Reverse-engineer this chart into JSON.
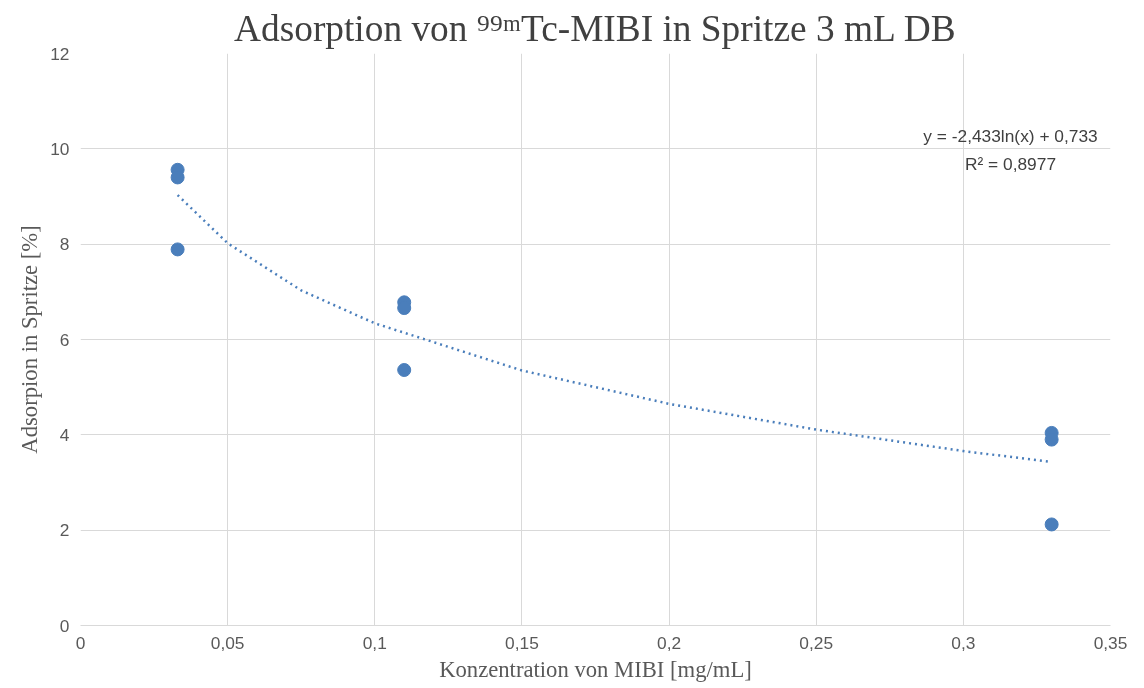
{
  "chart_data": {
    "type": "scatter",
    "title": "Adsorption von ⁹⁹ᵐTc-MIBI in Spritze 3 mL DB",
    "xlabel": "Konzentration von MIBI [mg/mL]",
    "ylabel": "Adsorpion in Spritze [%]",
    "series": [
      {
        "color": "#4a7ebb",
        "x": [
          0.033,
          0.033,
          0.033,
          0.11,
          0.11,
          0.11,
          0.33,
          0.33,
          0.33
        ],
        "values": [
          9.56,
          9.4,
          7.89,
          6.78,
          6.66,
          5.36,
          4.04,
          3.9,
          2.12
        ]
      },
      {
        "type": "line",
        "color": "#4a7ebb",
        "line_style": "dotted",
        "marker": "none",
        "x": [
          0.033,
          0.05,
          0.075,
          0.1,
          0.15,
          0.2,
          0.25,
          0.3,
          0.33
        ],
        "values": [
          9.03,
          8.02,
          7.03,
          6.34,
          5.35,
          4.65,
          4.11,
          3.66,
          3.43
        ]
      }
    ],
    "annotations": [
      "y = -2,433ln(x) + 0,733",
      "R² = 0,8977"
    ],
    "xlim": [
      0,
      0.35
    ],
    "xticks": [
      {
        "value": 0,
        "label": "0"
      },
      {
        "value": 0.05,
        "label": "0,05"
      },
      {
        "value": 0.1,
        "label": "0,1"
      },
      {
        "value": 0.15,
        "label": "0,15"
      },
      {
        "value": 0.2,
        "label": "0,2"
      },
      {
        "value": 0.25,
        "label": "0,25"
      },
      {
        "value": 0.3,
        "label": "0,3"
      },
      {
        "value": 0.35,
        "label": "0,35"
      }
    ],
    "ylim": [
      0,
      12
    ],
    "yticks": [
      0,
      2,
      4,
      6,
      8,
      10,
      12
    ],
    "grid": true,
    "marker": "circle"
  }
}
